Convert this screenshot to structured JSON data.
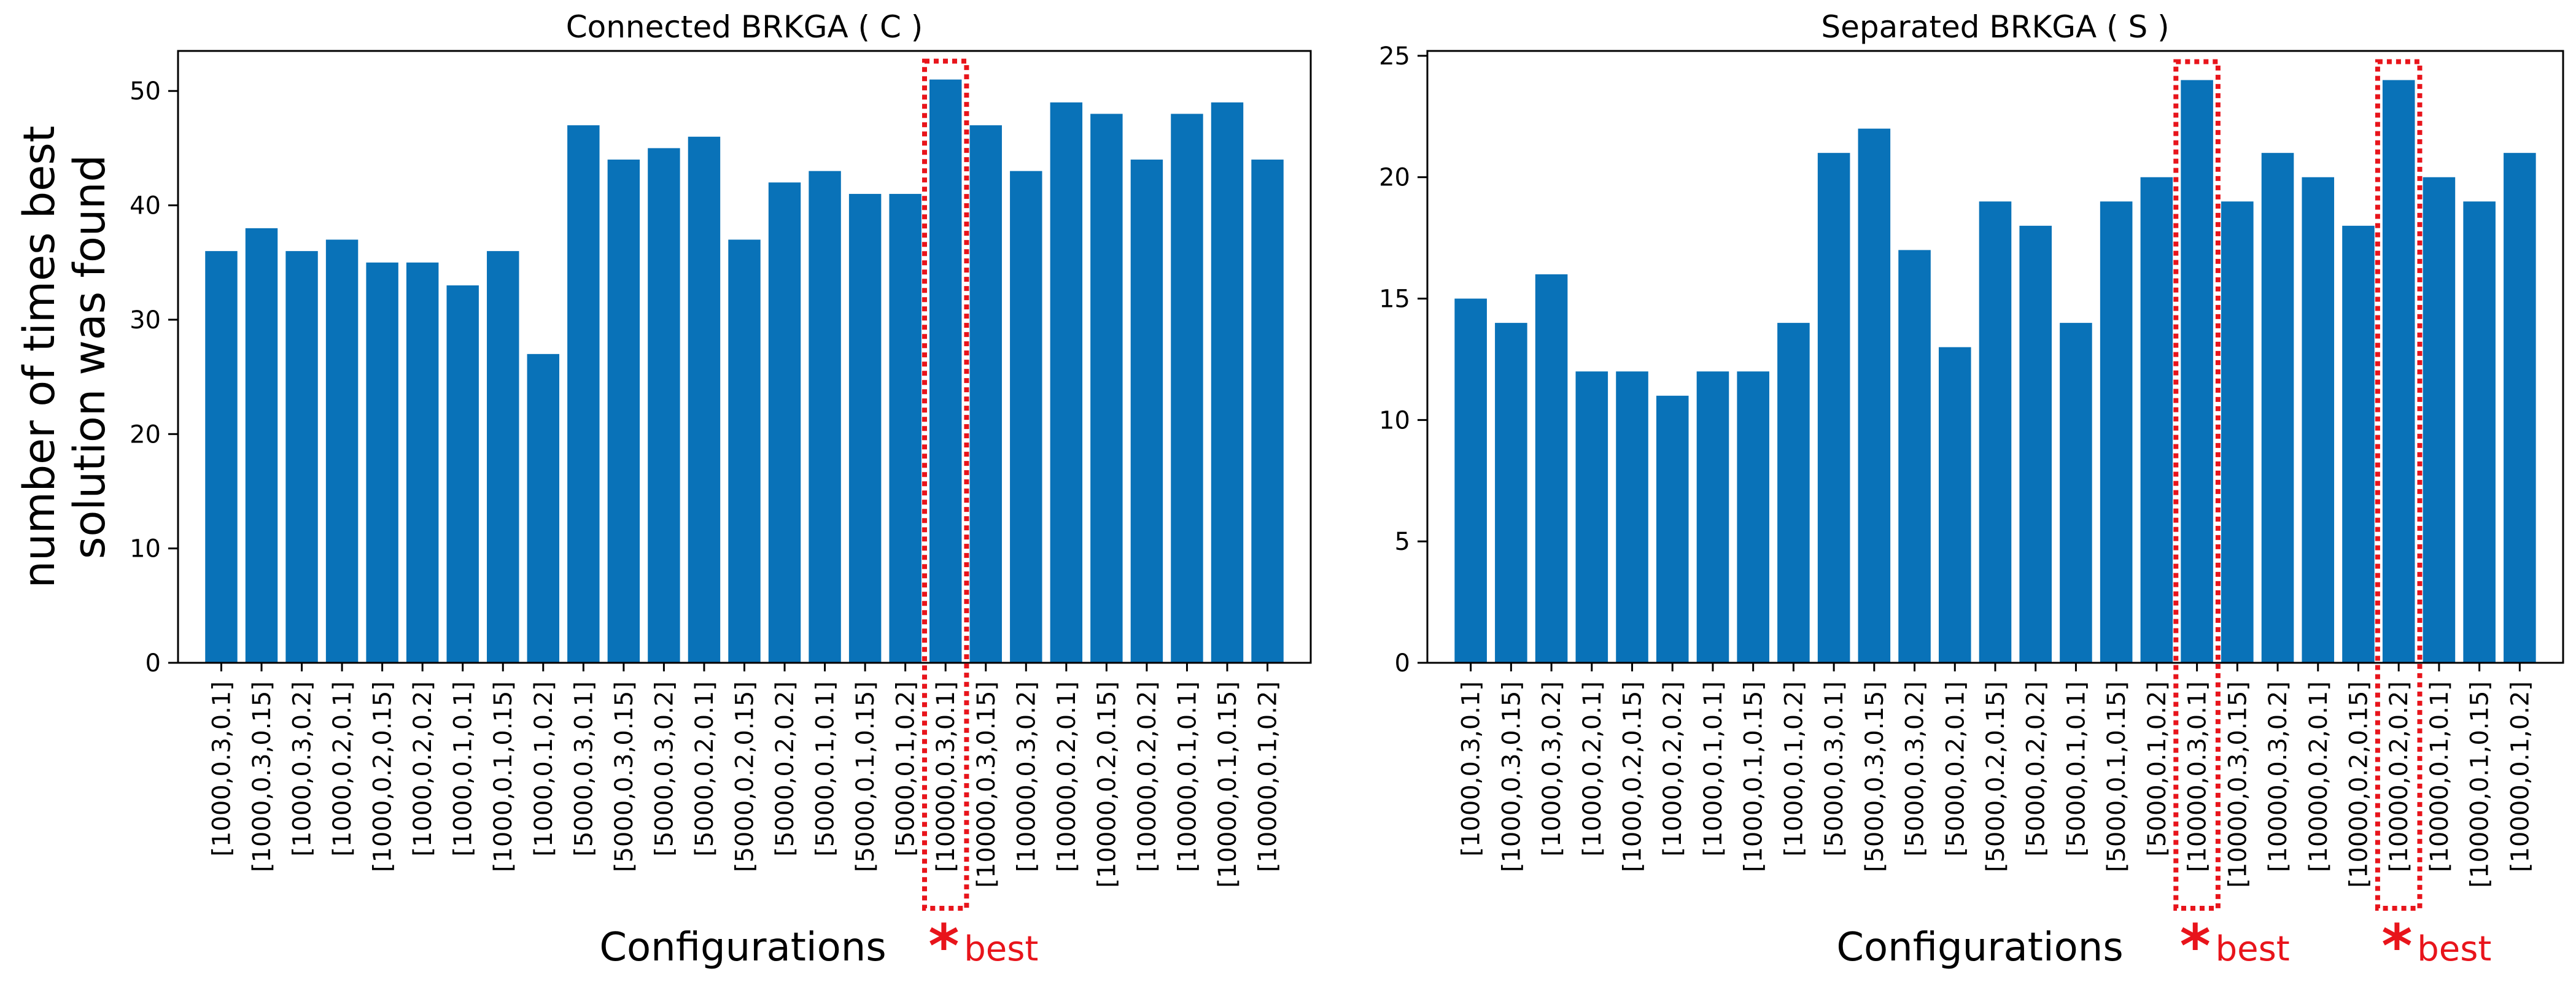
{
  "chart_data": [
    {
      "type": "bar",
      "title": "Connected BRKGA ( C )",
      "xlabel": "Configurations",
      "ylabel_lines": [
        "number of times best",
        "solution was found"
      ],
      "ylim": [
        0,
        53.5
      ],
      "yticks": [
        0,
        10,
        20,
        30,
        40,
        50
      ],
      "categories": [
        "[1000,0.3,0.1]",
        "[1000,0.3,0.15]",
        "[1000,0.3,0.2]",
        "[1000,0.2,0.1]",
        "[1000,0.2,0.15]",
        "[1000,0.2,0.2]",
        "[1000,0.1,0.1]",
        "[1000,0.1,0.15]",
        "[1000,0.1,0.2]",
        "[5000,0.3,0.1]",
        "[5000,0.3,0.15]",
        "[5000,0.3,0.2]",
        "[5000,0.2,0.1]",
        "[5000,0.2,0.15]",
        "[5000,0.2,0.2]",
        "[5000,0.1,0.1]",
        "[5000,0.1,0.15]",
        "[5000,0.1,0.2]",
        "[10000,0.3,0.1]",
        "[10000,0.3,0.15]",
        "[10000,0.3,0.2]",
        "[10000,0.2,0.1]",
        "[10000,0.2,0.15]",
        "[10000,0.2,0.2]",
        "[10000,0.1,0.1]",
        "[10000,0.1,0.15]",
        "[10000,0.1,0.2]"
      ],
      "values": [
        36,
        38,
        36,
        37,
        35,
        35,
        33,
        36,
        27,
        47,
        44,
        45,
        46,
        37,
        42,
        43,
        41,
        41,
        51,
        47,
        43,
        49,
        48,
        44,
        48,
        49,
        44
      ],
      "bar_color": "#0972b8",
      "highlight_color": "#e8141b",
      "highlight_indices": [
        18
      ],
      "annotation": {
        "star": "*",
        "text": "best"
      }
    },
    {
      "type": "bar",
      "title": "Separated BRKGA ( S )",
      "xlabel": "Configurations",
      "ylim": [
        0,
        25.2
      ],
      "yticks": [
        0,
        5,
        10,
        15,
        20,
        25
      ],
      "categories": [
        "[1000,0.3,0.1]",
        "[1000,0.3,0.15]",
        "[1000,0.3,0.2]",
        "[1000,0.2,0.1]",
        "[1000,0.2,0.15]",
        "[1000,0.2,0.2]",
        "[1000,0.1,0.1]",
        "[1000,0.1,0.15]",
        "[1000,0.1,0.2]",
        "[5000,0.3,0.1]",
        "[5000,0.3,0.15]",
        "[5000,0.3,0.2]",
        "[5000,0.2,0.1]",
        "[5000,0.2,0.15]",
        "[5000,0.2,0.2]",
        "[5000,0.1,0.1]",
        "[5000,0.1,0.15]",
        "[5000,0.1,0.2]",
        "[10000,0.3,0.1]",
        "[10000,0.3,0.15]",
        "[10000,0.3,0.2]",
        "[10000,0.2,0.1]",
        "[10000,0.2,0.15]",
        "[10000,0.2,0.2]",
        "[10000,0.1,0.1]",
        "[10000,0.1,0.15]",
        "[10000,0.1,0.2]"
      ],
      "values": [
        15,
        14,
        16,
        12,
        12,
        11,
        12,
        12,
        14,
        21,
        22,
        17,
        13,
        19,
        18,
        14,
        19,
        20,
        24,
        19,
        21,
        20,
        18,
        24,
        20,
        19,
        21
      ],
      "bar_color": "#0972b8",
      "highlight_color": "#e8141b",
      "highlight_indices": [
        18,
        23
      ],
      "annotation": {
        "star": "*",
        "text": "best"
      }
    }
  ]
}
